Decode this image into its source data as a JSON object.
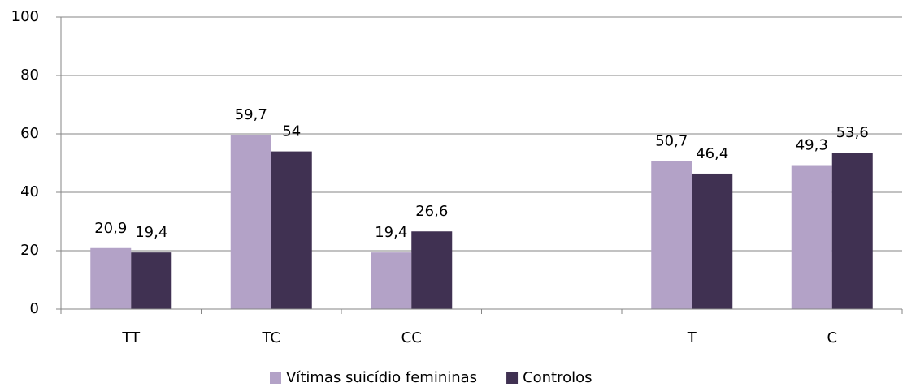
{
  "chart_data": {
    "type": "bar",
    "categories": [
      "TT",
      "TC",
      "CC",
      null,
      "T",
      "C"
    ],
    "series": [
      {
        "name": "Vítimas suicídio femininas",
        "color": "#b3a2c7",
        "values": [
          20.9,
          59.7,
          19.4,
          null,
          50.7,
          49.3
        ],
        "value_labels": [
          "20,9",
          "59,7",
          "19,4",
          null,
          "50,7",
          "49,3"
        ]
      },
      {
        "name": "Controlos",
        "color": "#403152",
        "values": [
          19.4,
          54,
          26.6,
          null,
          46.4,
          53.6
        ],
        "value_labels": [
          "19,4",
          "54",
          "26,6",
          null,
          "46,4",
          "53,6"
        ]
      }
    ],
    "ylim": [
      0,
      100
    ],
    "yticks": [
      0,
      20,
      40,
      60,
      80,
      100
    ],
    "grid": true,
    "legend": "bottom"
  }
}
